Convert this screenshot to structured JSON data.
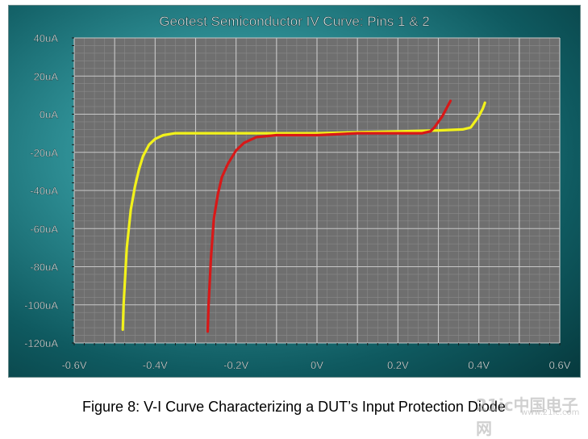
{
  "chart_data": {
    "type": "line",
    "title": "Geotest Semiconductor IV Curve:  Pins 1 & 2",
    "xlabel": "",
    "ylabel": "",
    "xlim": [
      -0.6,
      0.6
    ],
    "ylim": [
      -120,
      40
    ],
    "x_ticks": [
      -0.6,
      -0.4,
      -0.2,
      0,
      0.2,
      0.4,
      0.6
    ],
    "x_tick_labels": [
      "-0.6V",
      "-0.4V",
      "-0.2V",
      "0V",
      "0.2V",
      "0.4V",
      "0.6V"
    ],
    "y_ticks": [
      40,
      20,
      0,
      -20,
      -40,
      -60,
      -80,
      -100,
      -120
    ],
    "y_tick_labels": [
      "40uA",
      "20uA",
      "0uA",
      "-20uA",
      "-40uA",
      "-60uA",
      "-80uA",
      "-100uA",
      "-120uA"
    ],
    "grid": true,
    "series": [
      {
        "color": "#f2f21a",
        "x": [
          -0.48,
          -0.478,
          -0.47,
          -0.46,
          -0.45,
          -0.44,
          -0.43,
          -0.415,
          -0.4,
          -0.38,
          -0.35,
          -0.3,
          -0.2,
          -0.1,
          0,
          0.1,
          0.2,
          0.3,
          0.36,
          0.38,
          0.39,
          0.4,
          0.41,
          0.415
        ],
        "y": [
          -113,
          -100,
          -70,
          -50,
          -38,
          -29,
          -22,
          -16,
          -13,
          -11,
          -10,
          -10,
          -10,
          -10,
          -10,
          -9.5,
          -9,
          -8.5,
          -8,
          -7,
          -4,
          -1,
          3,
          6
        ]
      },
      {
        "color": "#d81818",
        "x": [
          -0.27,
          -0.268,
          -0.262,
          -0.255,
          -0.245,
          -0.235,
          -0.22,
          -0.2,
          -0.18,
          -0.15,
          -0.1,
          0,
          0.1,
          0.2,
          0.26,
          0.28,
          0.29,
          0.3,
          0.31,
          0.32,
          0.33
        ],
        "y": [
          -114,
          -100,
          -75,
          -55,
          -42,
          -33,
          -26,
          -19,
          -15,
          -12,
          -11,
          -11,
          -10,
          -10,
          -10,
          -9,
          -7,
          -4,
          -1,
          3,
          7
        ]
      }
    ]
  },
  "caption": "Figure 8:  V-I Curve Characterizing a DUT’s Input Protection Diode",
  "watermark": "21ic中国电子网",
  "watermark_sub": "www.21ic.com"
}
